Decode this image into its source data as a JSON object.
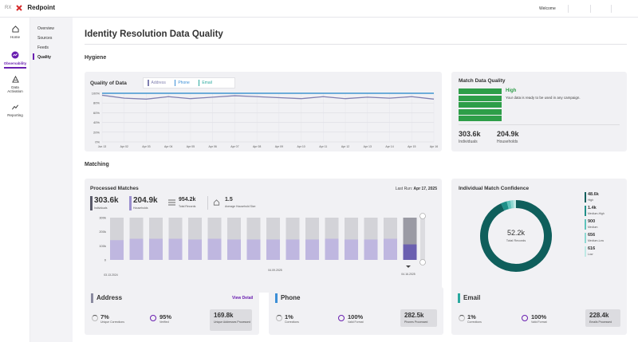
{
  "topbar": {
    "app_prefix": "RX",
    "brand": "Redpoint",
    "welcome": "Welcome"
  },
  "sidenav": [
    {
      "label": "Home",
      "icon": "home-icon",
      "active": false
    },
    {
      "label": "Observability",
      "icon": "observability-icon",
      "active": true
    },
    {
      "label": "Data Activation",
      "icon": "data-activation-icon",
      "active": false
    },
    {
      "label": "Reporting",
      "icon": "reporting-icon",
      "active": false
    }
  ],
  "subnav": [
    {
      "label": "Overview",
      "active": false
    },
    {
      "label": "Sources",
      "active": false
    },
    {
      "label": "Feeds",
      "active": false
    },
    {
      "label": "Quality",
      "active": true
    }
  ],
  "page": {
    "title": "Identity Resolution Data Quality"
  },
  "sections": {
    "hygiene": "Hygiene",
    "matching": "Matching"
  },
  "quality_card": {
    "title": "Quality of Data"
  },
  "match_quality": {
    "title": "Match Data Quality",
    "level": "High",
    "message": "Your data is ready to be used in any campaign.",
    "bars": 5,
    "individuals": "303.6k",
    "individuals_label": "Individuals",
    "households": "204.9k",
    "households_label": "Households"
  },
  "processed": {
    "title": "Processed Matches",
    "last_run_label": "Last Run:",
    "last_run": "Apr 17, 2025",
    "kpis": [
      {
        "value": "303.6k",
        "label": "Individuals"
      },
      {
        "value": "204.9k",
        "label": "Households"
      },
      {
        "value": "954.2k",
        "label": "Total Records"
      },
      {
        "value": "1.5",
        "label": "Average Household Size"
      }
    ],
    "date_labels": [
      "03.13.2024",
      "04.09.2025",
      "04.16.2025"
    ]
  },
  "confidence": {
    "title": "Individual Match Confidence",
    "center_value": "52.2k",
    "center_label": "Total Records",
    "legend": [
      {
        "value": "48.6k",
        "label": "High",
        "color": "#0f5f5c"
      },
      {
        "value": "1.4k",
        "label": "Medium-High",
        "color": "#1f8f88"
      },
      {
        "value": "900",
        "label": "Medium",
        "color": "#5fc3bb"
      },
      {
        "value": "656",
        "label": "Medium-Low",
        "color": "#8fd8d2"
      },
      {
        "value": "616",
        "label": "Low",
        "color": "#bfe9e5"
      }
    ]
  },
  "address": {
    "title": "Address",
    "view_detail": "View Detail",
    "m1_value": "7%",
    "m1_label": "Unique Corrections",
    "m2_value": "95%",
    "m2_label": "Verified",
    "box_value": "169.8k",
    "box_label": "Unique Addresses Processed"
  },
  "phone": {
    "title": "Phone",
    "m1_value": "1%",
    "m1_label": "Corrections",
    "m2_value": "100%",
    "m2_label": "Valid Format",
    "box_value": "282.5k",
    "box_label": "Phones Processed"
  },
  "email": {
    "title": "Email",
    "m1_value": "1%",
    "m1_label": "Corrections",
    "m2_value": "100%",
    "m2_label": "Valid Format",
    "box_value": "228.4k",
    "box_label": "Emails Processed"
  },
  "colors": {
    "accent": "#6a1fb0",
    "teal": "#0f5f5c",
    "green": "#2e9e48",
    "purple": "#9b8fcf",
    "blue": "#3c8fd6"
  },
  "chart_data": [
    {
      "type": "line",
      "title": "Quality of Data",
      "categories": [
        "Jun 13",
        "Apr 02",
        "Apr 03",
        "Apr 04",
        "Apr 05",
        "Apr 06",
        "Apr 07",
        "Apr 08",
        "Apr 09",
        "Apr 10",
        "Apr 11",
        "Apr 12",
        "Apr 13",
        "Apr 14",
        "Apr 15",
        "Apr 16"
      ],
      "ylim": [
        0,
        100
      ],
      "yticks": [
        "0%",
        "20%",
        "40%",
        "60%",
        "80%",
        "100%"
      ],
      "series": [
        {
          "name": "Address",
          "color": "#7f7fb0",
          "values": [
            96,
            90,
            88,
            93,
            89,
            92,
            95,
            93,
            91,
            89,
            93,
            89,
            92,
            90,
            93,
            88
          ]
        },
        {
          "name": "Phone",
          "color": "#3c8fd6",
          "values": [
            100,
            100,
            100,
            100,
            100,
            100,
            100,
            100,
            100,
            100,
            100,
            100,
            100,
            100,
            100,
            100
          ]
        },
        {
          "name": "Email",
          "color": "#2aa99f",
          "values": [
            100,
            100,
            100,
            100,
            100,
            100,
            100,
            100,
            100,
            100,
            100,
            100,
            100,
            100,
            100,
            100
          ]
        }
      ]
    },
    {
      "type": "bar",
      "title": "Processed Matches",
      "ylim": [
        0,
        300
      ],
      "yticks": [
        "0",
        "100k",
        "200k",
        "300k"
      ],
      "series": [
        {
          "name": "Matched",
          "values": [
            140,
            150,
            150,
            150,
            145,
            150,
            145,
            145,
            145,
            145,
            145,
            150,
            145,
            145,
            150,
            110
          ]
        },
        {
          "name": "Total",
          "values": [
            300,
            300,
            300,
            300,
            300,
            300,
            300,
            300,
            300,
            300,
            300,
            300,
            300,
            300,
            300,
            300
          ]
        }
      ]
    },
    {
      "type": "pie",
      "title": "Individual Match Confidence",
      "categories": [
        "High",
        "Medium-High",
        "Medium",
        "Medium-Low",
        "Low"
      ],
      "values": [
        48600,
        1400,
        900,
        656,
        616
      ]
    }
  ]
}
